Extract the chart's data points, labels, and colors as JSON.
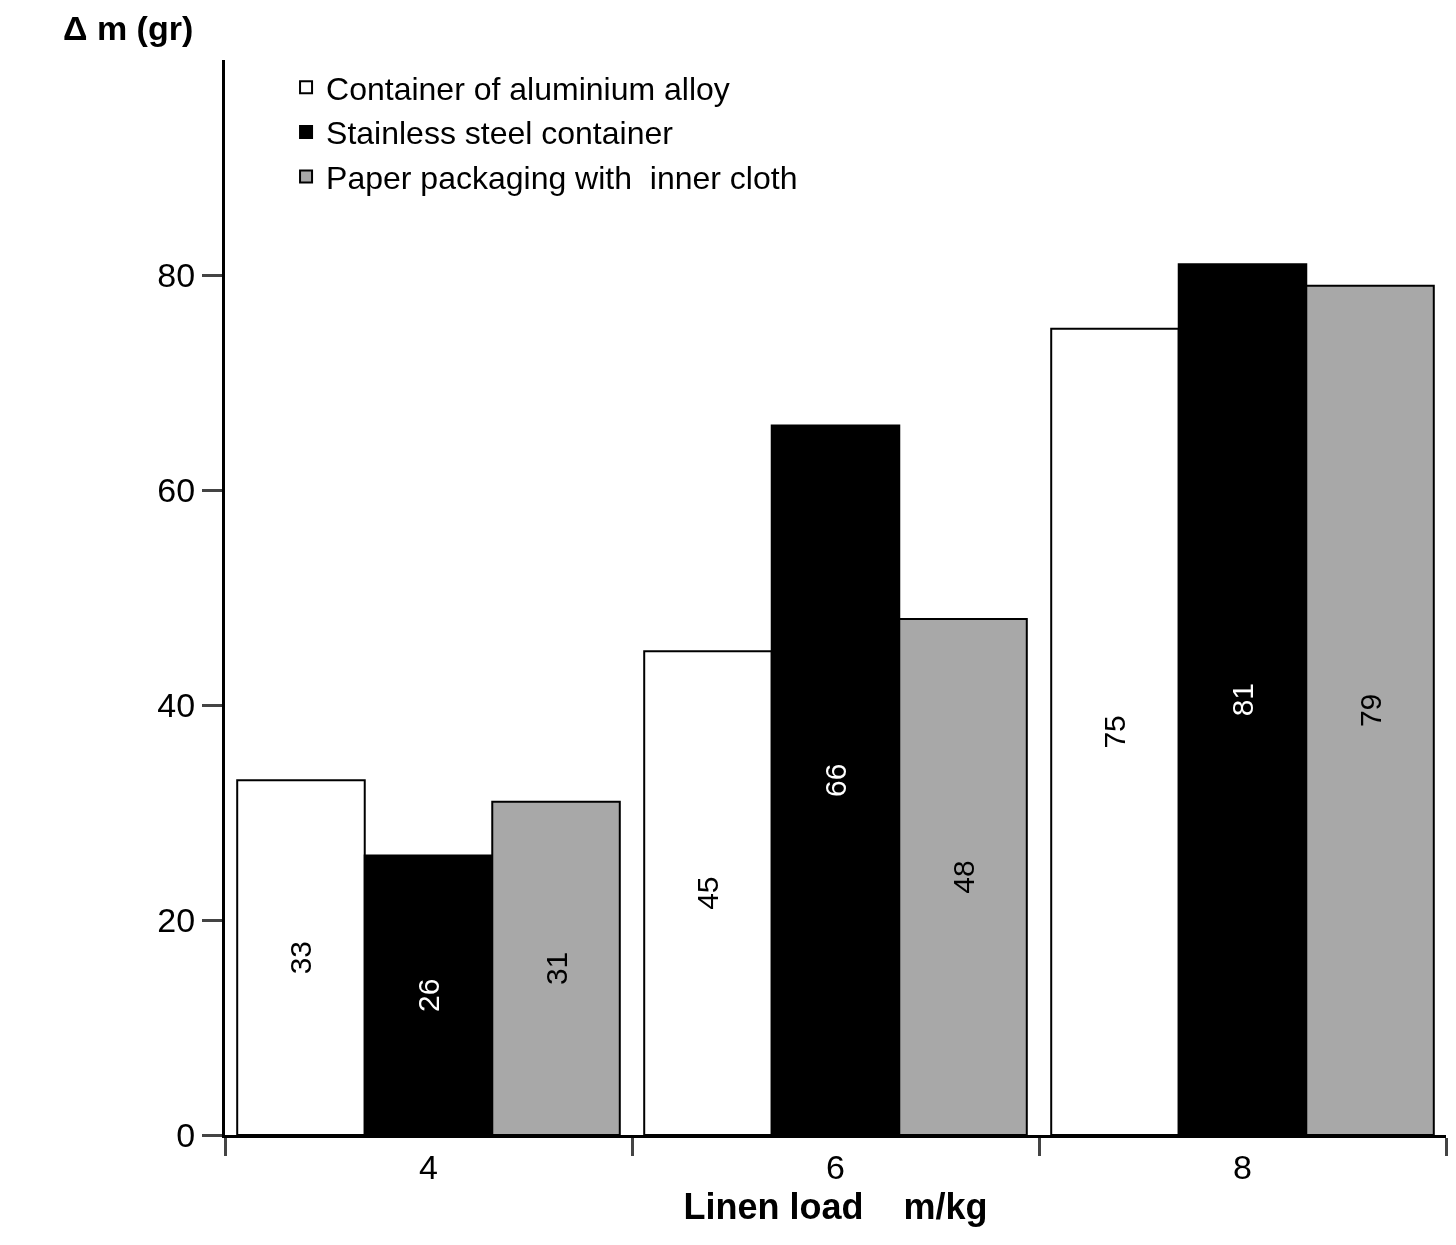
{
  "chart_data": {
    "type": "bar",
    "xlabel": "Linen load    m/kg",
    "ylabel": "Δ m (gr)",
    "categories": [
      "4",
      "6",
      "8"
    ],
    "series": [
      {
        "name": "Container of aluminium alloy",
        "color": "#ffffff",
        "values": [
          33,
          45,
          75
        ]
      },
      {
        "name": "Stainless steel container",
        "color": "#000000",
        "values": [
          26,
          66,
          81
        ]
      },
      {
        "name": "Paper packaging with  inner cloth",
        "color": "#a8a8a8",
        "values": [
          31,
          48,
          79
        ]
      }
    ],
    "ylim": [
      0,
      100
    ],
    "yticks": [
      0,
      20,
      40,
      60,
      80
    ],
    "grid": false,
    "legend": "top left",
    "data_labels": true
  }
}
